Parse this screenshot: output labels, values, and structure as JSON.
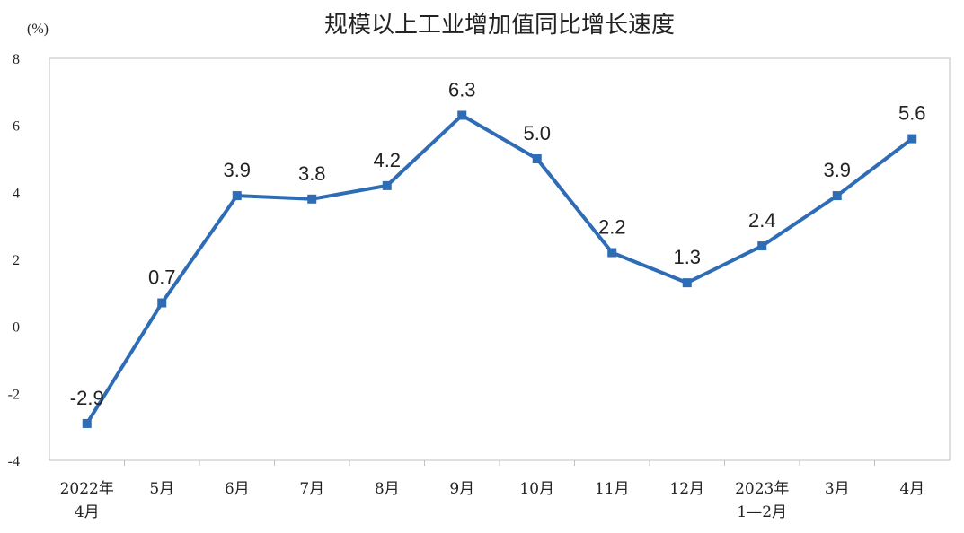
{
  "chart_data": {
    "type": "line",
    "title": "规模以上工业增加值同比增长速度",
    "unit_label": "(%)",
    "categories": [
      [
        "2022年",
        "4月"
      ],
      [
        "5月"
      ],
      [
        "6月"
      ],
      [
        "7月"
      ],
      [
        "8月"
      ],
      [
        "9月"
      ],
      [
        "10月"
      ],
      [
        "11月"
      ],
      [
        "12月"
      ],
      [
        "2023年",
        "1—2月"
      ],
      [
        "3月"
      ],
      [
        "4月"
      ]
    ],
    "values": [
      -2.9,
      0.7,
      3.9,
      3.8,
      4.2,
      6.3,
      5.0,
      2.2,
      1.3,
      2.4,
      3.9,
      5.6
    ],
    "data_labels": [
      "-2.9",
      "0.7",
      "3.9",
      "3.8",
      "4.2",
      "6.3",
      "5.0",
      "2.2",
      "1.3",
      "2.4",
      "3.9",
      "5.6"
    ],
    "ylim": [
      -4,
      8
    ],
    "yticks": [
      -4,
      -2,
      0,
      2,
      4,
      6,
      8
    ],
    "grid": false,
    "legend": "none",
    "line_color": "#2e6db5"
  }
}
